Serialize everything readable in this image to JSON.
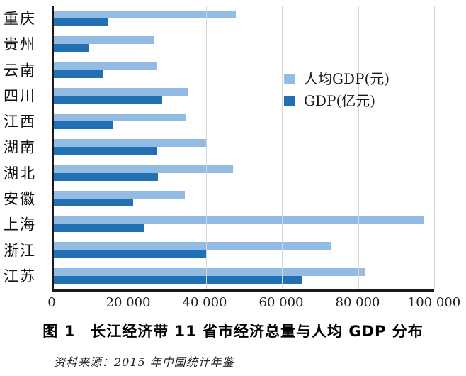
{
  "figure": {
    "title": "图 1　长江经济带 11 省市经济总量与人均 GDP 分布",
    "source": "资料来源：2015 年中国统计年鉴"
  },
  "chart_data": {
    "type": "bar",
    "orientation": "horizontal",
    "title": "图 1　长江经济带 11 省市经济总量与人均 GDP 分布",
    "source_note": "资料来源：2015 年中国统计年鉴",
    "categories": [
      "重庆",
      "贵州",
      "云南",
      "四川",
      "江西",
      "湖南",
      "湖北",
      "安徽",
      "上海",
      "浙江",
      "江苏"
    ],
    "series": [
      {
        "name": "人均GDP(元)",
        "color": "#92BCE3",
        "values": [
          47859,
          26437,
          27264,
          35128,
          34674,
          40271,
          47124,
          34425,
          97370,
          72967,
          81874
        ]
      },
      {
        "name": "GDP(亿元)",
        "color": "#2170B3",
        "values": [
          14265,
          9266,
          12815,
          28537,
          15715,
          27037,
          27379,
          20849,
          23568,
          40173,
          65088
        ]
      }
    ],
    "xlim": [
      0,
      100000
    ],
    "x_tick_values": [
      0,
      20000,
      40000,
      60000,
      80000,
      100000
    ],
    "x_tick_labels": [
      "0",
      "20 000",
      "40 000",
      "60 000",
      "80 000",
      "100 000"
    ],
    "grid": "vertical",
    "gridline_color": "#d6d6d6",
    "axis_color": "#1a1a1a",
    "legend_position": "middle-right",
    "xlabel": "",
    "ylabel": ""
  }
}
